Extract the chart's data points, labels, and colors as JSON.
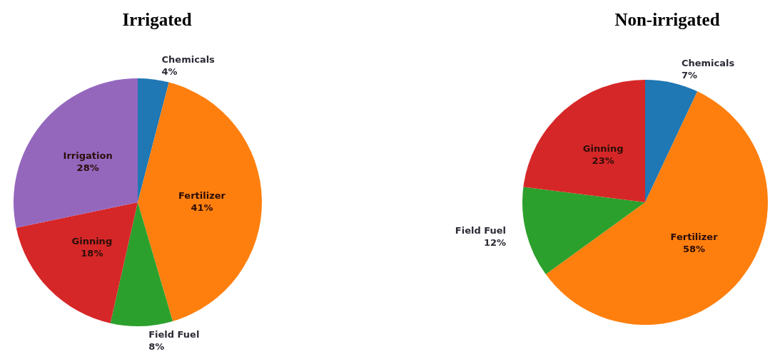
{
  "chart_data": [
    {
      "type": "pie",
      "title": "Irrigated",
      "categories": [
        "Chemicals",
        "Fertilizer",
        "Field Fuel",
        "Ginning",
        "Irrigation"
      ],
      "values": [
        4,
        41,
        8,
        18,
        28
      ],
      "value_labels": [
        "4%",
        "41%",
        "8%",
        "18%",
        "28%"
      ],
      "colors": [
        "#1f77b4",
        "#ff7f0e",
        "#2ca02c",
        "#d62728",
        "#9467bd"
      ]
    },
    {
      "type": "pie",
      "title": "Non-irrigated",
      "categories": [
        "Chemicals",
        "Fertilizer",
        "Field Fuel",
        "Ginning"
      ],
      "values": [
        7,
        58,
        12,
        23
      ],
      "value_labels": [
        "7%",
        "58%",
        "12%",
        "23%"
      ],
      "colors": [
        "#1f77b4",
        "#ff7f0e",
        "#2ca02c",
        "#d62728"
      ]
    }
  ]
}
